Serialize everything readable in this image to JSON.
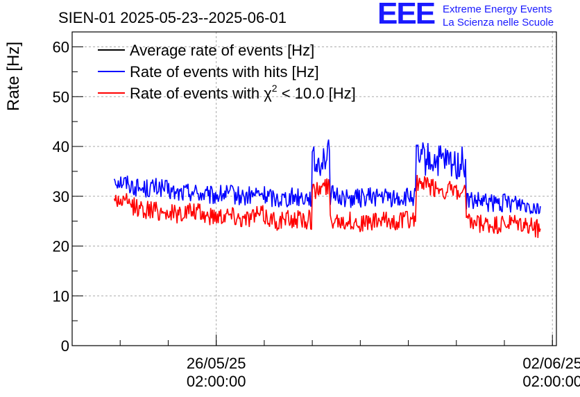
{
  "chart_data": {
    "type": "line",
    "title": "SIEN-01 2025-05-23--2025-06-01",
    "xlabel": "",
    "ylabel": "Rate [Hz]",
    "ylim": [
      0,
      63
    ],
    "yticks": [
      0,
      10,
      20,
      30,
      40,
      50,
      60
    ],
    "xlim": [
      "2025-05-23 02:00",
      "2025-06-02 04:00"
    ],
    "xtick_labels": [
      {
        "x": "2025-05-26 02:00",
        "date": "26/05/25",
        "time": "02:00:00"
      },
      {
        "x": "2025-06-02 02:00",
        "date": "02/06/25",
        "time": "02:00:00"
      }
    ],
    "grid": true,
    "legend_position": "top-left",
    "legend": [
      {
        "label": "Average rate of events [Hz]",
        "color": "#000000"
      },
      {
        "label": "Rate of events with hits [Hz]",
        "color": "#0000ff"
      },
      {
        "label_prefix": "Rate of events with ",
        "label_symbol": "χ",
        "label_sup": "2",
        "label_suffix": " < 10.0 [Hz]",
        "color": "#ff0000"
      }
    ],
    "series": [
      {
        "name": "Rate of events with hits [Hz]",
        "color": "#0000ff",
        "x": [
          "2025-05-23 23:00",
          "2025-05-24 06:00",
          "2025-05-24 12:00",
          "2025-05-24 22:00",
          "2025-05-25 06:00",
          "2025-05-25 14:00",
          "2025-05-25 22:00",
          "2025-05-26 08:00",
          "2025-05-26 16:00",
          "2025-05-27 00:00",
          "2025-05-27 08:00",
          "2025-05-27 18:00",
          "2025-05-28 00:00",
          "2025-05-28 04:00",
          "2025-05-28 08:00",
          "2025-05-28 14:00",
          "2025-05-28 20:00",
          "2025-05-29 04:00",
          "2025-05-29 12:00",
          "2025-05-29 20:00",
          "2025-05-30 04:00",
          "2025-05-30 08:00",
          "2025-05-30 16:00",
          "2025-05-31 00:00",
          "2025-05-31 04:00",
          "2025-05-31 10:00",
          "2025-05-31 20:00",
          "2025-06-01 08:00",
          "2025-06-01 20:00"
        ],
        "values": [
          33.5,
          32.5,
          31.5,
          31.8,
          30.5,
          31.0,
          30.0,
          30.5,
          29.8,
          30.5,
          29.5,
          30.0,
          29.8,
          36.5,
          38.0,
          30.2,
          29.5,
          29.8,
          30.0,
          29.5,
          29.8,
          37.5,
          37.0,
          36.5,
          36.5,
          29.0,
          28.5,
          28.8,
          28.0
        ]
      },
      {
        "name": "Rate of events with χ2 < 10.0 [Hz]",
        "color": "#ff0000",
        "x": [
          "2025-05-23 23:00",
          "2025-05-24 06:00",
          "2025-05-24 12:00",
          "2025-05-24 22:00",
          "2025-05-25 06:00",
          "2025-05-25 14:00",
          "2025-05-25 22:00",
          "2025-05-26 08:00",
          "2025-05-26 16:00",
          "2025-05-27 00:00",
          "2025-05-27 08:00",
          "2025-05-27 18:00",
          "2025-05-28 00:00",
          "2025-05-28 04:00",
          "2025-05-28 08:00",
          "2025-05-28 14:00",
          "2025-05-28 20:00",
          "2025-05-29 04:00",
          "2025-05-29 12:00",
          "2025-05-29 20:00",
          "2025-05-30 04:00",
          "2025-05-30 08:00",
          "2025-05-30 16:00",
          "2025-05-31 00:00",
          "2025-05-31 04:00",
          "2025-05-31 10:00",
          "2025-05-31 20:00",
          "2025-06-01 08:00",
          "2025-06-01 20:00"
        ],
        "values": [
          29.5,
          28.5,
          27.5,
          27.0,
          26.5,
          27.0,
          26.0,
          26.5,
          25.5,
          26.5,
          25.0,
          25.5,
          25.3,
          31.0,
          32.0,
          25.5,
          25.0,
          24.5,
          25.0,
          25.0,
          25.5,
          32.5,
          31.5,
          31.0,
          30.5,
          24.5,
          24.0,
          24.5,
          23.5
        ]
      }
    ]
  },
  "logo": {
    "mark": "EEE",
    "line1": "Extreme Energy Events",
    "line2": "La Scienza nelle Scuole"
  },
  "colors": {
    "hits": "#0000ff",
    "chi2": "#ff0000",
    "average": "#000000",
    "grid": "#aaaaaa",
    "logo": "#1a1aff"
  }
}
